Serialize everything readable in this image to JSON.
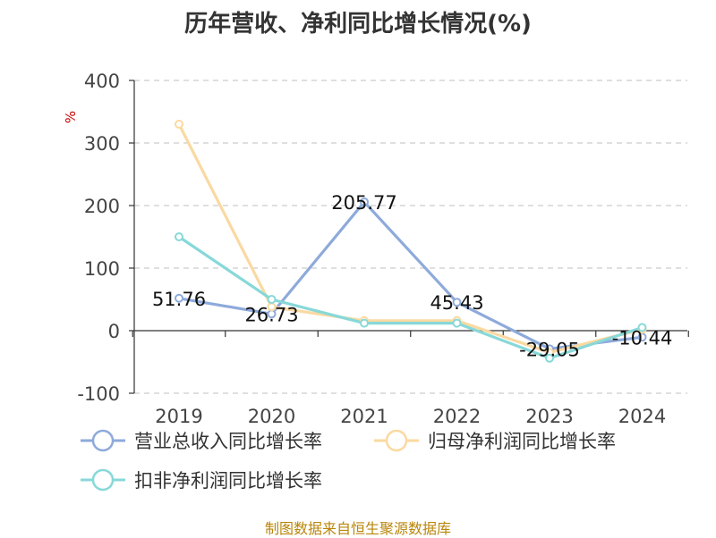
{
  "title": "历年营收、净利同比增长情况(%)",
  "source": "制图数据来自恒生聚源数据库",
  "chart_data": {
    "type": "line",
    "title": "历年营收、净利同比增长情况(%)",
    "ylabel": "%",
    "xlabel": "",
    "categories": [
      "2019",
      "2020",
      "2021",
      "2022",
      "2023",
      "2024"
    ],
    "ylim": [
      -100,
      400
    ],
    "yticks": [
      -100,
      0,
      100,
      200,
      300,
      400
    ],
    "grid": true,
    "legend_position": "bottom",
    "series": [
      {
        "name": "营业总收入同比增长率",
        "color": "#8eaadb",
        "values": [
          51.76,
          26.73,
          205.77,
          45.43,
          -29.05,
          -10.44
        ],
        "labels": [
          "51.76",
          "26.73",
          "205.77",
          "45.43",
          "-29.05",
          "-10.44"
        ]
      },
      {
        "name": "归母净利润同比增长率",
        "color": "#fad9a1",
        "values": [
          330,
          38,
          16,
          16,
          -35,
          2
        ]
      },
      {
        "name": "扣非净利润同比增长率",
        "color": "#88d8d8",
        "values": [
          150,
          50,
          12,
          12,
          -44,
          5
        ]
      }
    ]
  }
}
